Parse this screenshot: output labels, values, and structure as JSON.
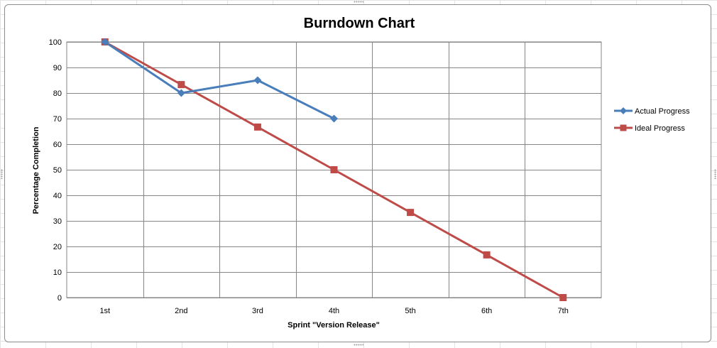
{
  "chart_data": {
    "type": "line",
    "title": "Burndown Chart",
    "xlabel": "Sprint \"Version Release\"",
    "ylabel": "Percentage Completion",
    "categories": [
      "1st",
      "2nd",
      "3rd",
      "4th",
      "5th",
      "6th",
      "7th"
    ],
    "ylim": [
      0,
      100
    ],
    "yticks": [
      0,
      10,
      20,
      30,
      40,
      50,
      60,
      70,
      80,
      90,
      100
    ],
    "grid": true,
    "legend_position": "right",
    "series": [
      {
        "name": "Actual Progress",
        "color": "#4a7ebb",
        "marker": "diamond",
        "values": [
          100,
          80,
          85,
          70,
          null,
          null,
          null
        ]
      },
      {
        "name": "Ideal Progress",
        "color": "#be4b48",
        "marker": "square",
        "values": [
          100,
          83.3,
          66.7,
          50,
          33.3,
          16.7,
          0
        ]
      }
    ]
  }
}
